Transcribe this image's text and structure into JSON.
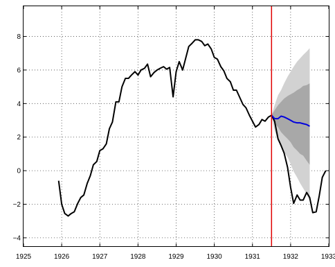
{
  "chart_data": {
    "type": "line",
    "title": "",
    "xlabel": "",
    "ylabel": "",
    "xlim": [
      1925,
      1933
    ],
    "ylim": [
      -4.5,
      9.8
    ],
    "grid": true,
    "x_ticks": [
      1925,
      1926,
      1927,
      1928,
      1929,
      1930,
      1931,
      1932,
      1933
    ],
    "x_tick_labels": [
      "1925",
      "1926",
      "1927",
      "1928",
      "1929",
      "1930",
      "1931",
      "1932",
      "1933"
    ],
    "y_ticks": [
      -4,
      -2,
      0,
      2,
      4,
      6,
      8
    ],
    "y_tick_labels": [
      "−4",
      "−2",
      "0",
      "2",
      "4",
      "6",
      "8"
    ],
    "vline": {
      "x": 1931.5,
      "color": "#e00000"
    },
    "series": [
      {
        "role": "observed",
        "color": "#000000",
        "points": [
          [
            1925.92,
            -0.6
          ],
          [
            1926.0,
            -2.0
          ],
          [
            1926.08,
            -2.55
          ],
          [
            1926.17,
            -2.7
          ],
          [
            1926.25,
            -2.55
          ],
          [
            1926.33,
            -2.45
          ],
          [
            1926.42,
            -1.95
          ],
          [
            1926.5,
            -1.6
          ],
          [
            1926.58,
            -1.45
          ],
          [
            1926.67,
            -0.75
          ],
          [
            1926.75,
            -0.3
          ],
          [
            1926.83,
            0.35
          ],
          [
            1926.92,
            0.55
          ],
          [
            1927.0,
            1.2
          ],
          [
            1927.08,
            1.3
          ],
          [
            1927.17,
            1.6
          ],
          [
            1927.25,
            2.5
          ],
          [
            1927.33,
            2.9
          ],
          [
            1927.42,
            4.1
          ],
          [
            1927.5,
            4.1
          ],
          [
            1927.58,
            5.0
          ],
          [
            1927.67,
            5.5
          ],
          [
            1927.75,
            5.5
          ],
          [
            1927.83,
            5.7
          ],
          [
            1927.92,
            5.9
          ],
          [
            1928.0,
            5.7
          ],
          [
            1928.08,
            6.0
          ],
          [
            1928.17,
            6.1
          ],
          [
            1928.25,
            6.35
          ],
          [
            1928.33,
            5.6
          ],
          [
            1928.42,
            5.85
          ],
          [
            1928.5,
            6.0
          ],
          [
            1928.58,
            6.1
          ],
          [
            1928.67,
            6.2
          ],
          [
            1928.75,
            6.05
          ],
          [
            1928.83,
            6.15
          ],
          [
            1928.92,
            4.4
          ],
          [
            1929.0,
            5.9
          ],
          [
            1929.08,
            6.5
          ],
          [
            1929.17,
            6.0
          ],
          [
            1929.25,
            6.7
          ],
          [
            1929.33,
            7.4
          ],
          [
            1929.42,
            7.6
          ],
          [
            1929.5,
            7.8
          ],
          [
            1929.58,
            7.8
          ],
          [
            1929.67,
            7.7
          ],
          [
            1929.75,
            7.45
          ],
          [
            1929.83,
            7.55
          ],
          [
            1929.92,
            7.25
          ],
          [
            1930.0,
            6.75
          ],
          [
            1930.08,
            6.65
          ],
          [
            1930.17,
            6.2
          ],
          [
            1930.25,
            5.95
          ],
          [
            1930.33,
            5.5
          ],
          [
            1930.42,
            5.3
          ],
          [
            1930.5,
            4.8
          ],
          [
            1930.58,
            4.8
          ],
          [
            1930.67,
            4.35
          ],
          [
            1930.75,
            3.95
          ],
          [
            1930.83,
            3.75
          ],
          [
            1930.92,
            3.3
          ],
          [
            1931.0,
            2.95
          ],
          [
            1931.08,
            2.6
          ],
          [
            1931.17,
            2.75
          ],
          [
            1931.25,
            3.05
          ],
          [
            1931.33,
            2.95
          ],
          [
            1931.42,
            3.2
          ],
          [
            1931.5,
            3.3
          ],
          [
            1931.58,
            2.95
          ],
          [
            1931.67,
            1.9
          ],
          [
            1931.75,
            1.5
          ],
          [
            1931.83,
            1.05
          ],
          [
            1931.92,
            0.2
          ],
          [
            1932.0,
            -1.0
          ],
          [
            1932.08,
            -1.95
          ],
          [
            1932.17,
            -1.45
          ],
          [
            1932.25,
            -1.75
          ],
          [
            1932.33,
            -1.75
          ],
          [
            1932.42,
            -1.3
          ],
          [
            1932.5,
            -1.6
          ],
          [
            1932.58,
            -2.5
          ],
          [
            1932.67,
            -2.45
          ],
          [
            1932.75,
            -1.5
          ],
          [
            1932.83,
            -0.4
          ],
          [
            1932.92,
            0.0
          ]
        ]
      },
      {
        "role": "forecast",
        "color": "#0000dd",
        "points": [
          [
            1931.5,
            3.3
          ],
          [
            1931.58,
            3.1
          ],
          [
            1931.67,
            3.1
          ],
          [
            1931.75,
            3.25
          ],
          [
            1931.83,
            3.2
          ],
          [
            1931.92,
            3.1
          ],
          [
            1932.0,
            3.0
          ],
          [
            1932.08,
            2.9
          ],
          [
            1932.17,
            2.85
          ],
          [
            1932.25,
            2.85
          ],
          [
            1932.33,
            2.8
          ],
          [
            1932.42,
            2.75
          ],
          [
            1932.5,
            2.65
          ]
        ]
      }
    ],
    "bands": [
      {
        "role": "outer-interval",
        "color": "#d2d2d2",
        "x": [
          1931.5,
          1931.58,
          1931.67,
          1931.75,
          1931.83,
          1931.92,
          1932.0,
          1932.08,
          1932.17,
          1932.25,
          1932.33,
          1932.42,
          1932.5
        ],
        "upper": [
          3.3,
          3.9,
          4.5,
          4.8,
          5.2,
          5.6,
          5.9,
          6.2,
          6.5,
          6.7,
          6.9,
          7.1,
          7.3
        ],
        "lower": [
          3.3,
          2.4,
          1.8,
          1.4,
          1.1,
          0.8,
          0.4,
          -0.05,
          -0.4,
          -0.75,
          -1.05,
          -1.4,
          -1.8
        ]
      },
      {
        "role": "inner-interval",
        "color": "#a8a8a8",
        "x": [
          1931.5,
          1931.58,
          1931.67,
          1931.75,
          1931.83,
          1931.92,
          1932.0,
          1932.08,
          1932.17,
          1932.25,
          1932.33,
          1932.42,
          1932.5
        ],
        "upper": [
          3.3,
          3.6,
          3.9,
          4.1,
          4.3,
          4.45,
          4.55,
          4.65,
          4.8,
          4.9,
          5.05,
          5.1,
          5.2
        ],
        "lower": [
          3.3,
          2.8,
          2.6,
          2.3,
          2.1,
          1.9,
          1.7,
          1.4,
          1.2,
          1.0,
          0.9,
          0.6,
          0.35
        ]
      }
    ]
  }
}
